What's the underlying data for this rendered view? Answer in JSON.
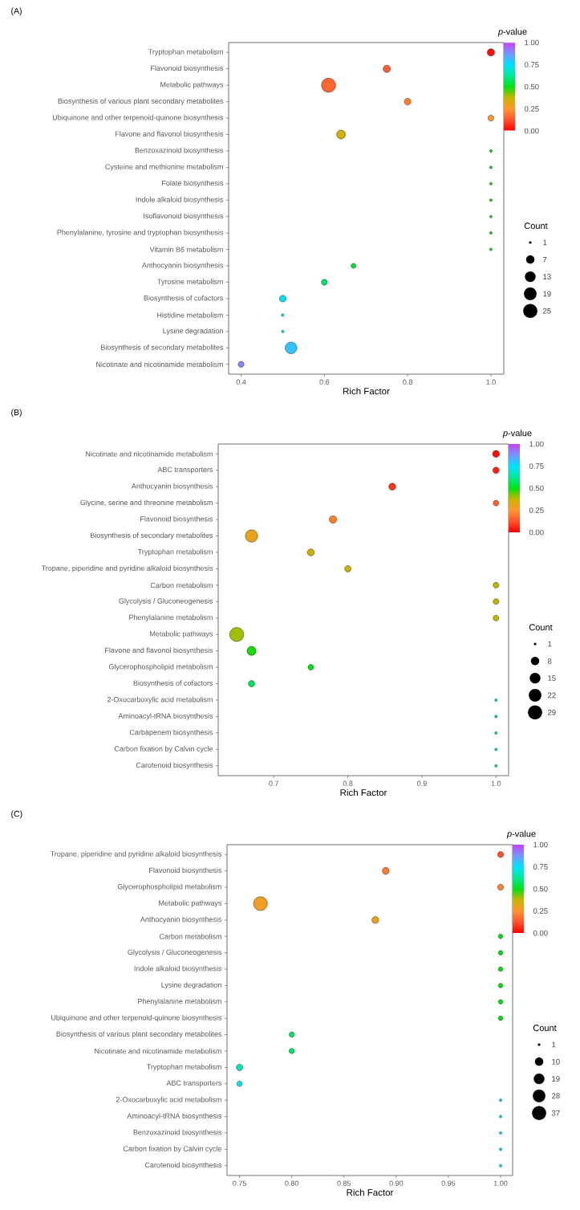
{
  "chart_data": [
    {
      "type": "bubble",
      "title": "(A)",
      "orientation": "horizontal",
      "categories": [
        "Tryptophan metabolism",
        "Flavonoid biosynthesis",
        "Metabolic pathways",
        "Biosynthesis of various plant secondary metabolites",
        "Ubiquinone and other terpenoid-quinone biosynthesis",
        "Flavone and flavonol biosynthesis",
        "Benzoxazinoid biosynthesis",
        "Cysteine and methionine metabolism",
        "Folate biosynthesis",
        "Indole alkaloid biosynthesis",
        "Isoflavonoid biosynthesis",
        "Phenylalanine, tyrosine and tryptophan biosynthesis",
        "Vitamin B6 metabolism",
        "Anthocyanin biosynthesis",
        "Tyrosine metabolism",
        "Biosynthesis of cofactors",
        "Histidine metabolism",
        "Lysine degradation",
        "Biosynthesis of secondary metabolites",
        "Nicotinate and nicotinamide metabolism"
      ],
      "values": [
        1.0,
        0.75,
        0.61,
        0.8,
        1.0,
        0.64,
        1.0,
        1.0,
        1.0,
        1.0,
        1.0,
        1.0,
        1.0,
        0.67,
        0.6,
        0.5,
        0.5,
        0.5,
        0.52,
        0.4
      ],
      "sizes": [
        5,
        5,
        25,
        4,
        3,
        8,
        1,
        1,
        1,
        1,
        1,
        1,
        1,
        2,
        3,
        4,
        1,
        1,
        16,
        3
      ],
      "cvalues": [
        0.02,
        0.15,
        0.16,
        0.2,
        0.25,
        0.36,
        0.5,
        0.5,
        0.5,
        0.5,
        0.5,
        0.5,
        0.5,
        0.53,
        0.58,
        0.72,
        0.74,
        0.74,
        0.8,
        0.9
      ],
      "xlabel": "Rich Factor",
      "xlim": [
        0.37,
        1.031
      ],
      "xticks": [
        0.4,
        0.6,
        0.8,
        {
          "value": 1,
          "label": "1.0"
        }
      ],
      "clabel": "*p*-value",
      "clim": [
        0,
        1
      ],
      "cticks": [
        {
          "value": 0,
          "label": "0.00"
        },
        {
          "value": 0.25,
          "label": "0.25"
        },
        {
          "value": 0.5,
          "label": "0.50"
        },
        {
          "value": 0.75,
          "label": "0.75"
        },
        {
          "value": 1,
          "label": "1.00"
        }
      ],
      "legend_title": "Count",
      "size_legend": [
        1,
        7,
        13,
        19,
        25
      ]
    },
    {
      "type": "bubble",
      "title": "(B)",
      "orientation": "horizontal",
      "categories": [
        "Nicotinate and nicotinamide metabolism",
        "ABC transporters",
        "Anthocyanin biosynthesis",
        "Glycine, serine and threonine metabolism",
        "Flavonoid biosynthesis",
        "Biosynthesis of secondary metabolites",
        "Tryptophan metabolism",
        "Tropane, piperidine and pyridine alkaloid biosynthesis",
        "Carbon metabolism",
        "Glycolysis / Gluconeogenesis",
        "Phenylalanine metabolism",
        "Metabolic pathways",
        "Flavone and flavonol biosynthesis",
        "Glycerophospholipid metabolism",
        "Biosynthesis of cofactors",
        "2-Oxocarboxylic acid metabolism",
        "Aminoacyl-tRNA biosynthesis",
        "Carbapenem biosynthesis",
        "Carbon fixation by Calvin cycle",
        "Carotenoid biosynthesis"
      ],
      "values": [
        1.0,
        1.0,
        0.86,
        1.0,
        0.78,
        0.67,
        0.75,
        0.8,
        1.0,
        1.0,
        1.0,
        0.65,
        0.67,
        0.75,
        0.67,
        1.0,
        1.0,
        1.0,
        1.0,
        1.0
      ],
      "sizes": [
        5,
        4,
        5,
        3,
        6,
        21,
        5,
        4,
        3,
        3,
        3,
        29,
        10,
        3,
        4,
        1,
        1,
        1,
        1,
        1
      ],
      "cvalues": [
        0.02,
        0.05,
        0.08,
        0.15,
        0.2,
        0.3,
        0.36,
        0.37,
        0.38,
        0.38,
        0.38,
        0.4,
        0.48,
        0.5,
        0.57,
        0.6,
        0.6,
        0.6,
        0.6,
        0.6
      ],
      "xlabel": "Rich Factor",
      "xlim": [
        0.625,
        1.017
      ],
      "xticks": [
        0.7,
        0.8,
        0.9,
        {
          "value": 1,
          "label": "1.0"
        }
      ],
      "clabel": "*p*-value",
      "clim": [
        0,
        1
      ],
      "cticks": [
        {
          "value": 0,
          "label": "0.00"
        },
        {
          "value": 0.25,
          "label": "0.25"
        },
        {
          "value": 0.5,
          "label": "0.50"
        },
        {
          "value": 0.75,
          "label": "0.75"
        },
        {
          "value": 1,
          "label": "1.00"
        }
      ],
      "legend_title": "Count",
      "size_legend": [
        1,
        8,
        15,
        22,
        29
      ]
    },
    {
      "type": "bubble",
      "title": "(C)",
      "orientation": "horizontal",
      "categories": [
        "Tropane, piperidine and pyridine alkaloid biosynthesis",
        "Flavonoid biosynthesis",
        "Glycerophospholipid metabolism",
        "Metabolic pathways",
        "Anthocyanin biosynthesis",
        "Carbon metabolism",
        "Glycolysis / Gluconeogenesis",
        "Indole alkaloid biosynthesis",
        "Lysine degradation",
        "Phenylalanine metabolism",
        "Ubiquinone and other terpenoid-quinone biosynthesis",
        "Biosynthesis of various plant secondary metabolites",
        "Nicotinate and nicotinamide metabolism",
        "Tryptophan metabolism",
        "ABC transporters",
        "2-Oxocarboxylic acid metabolism",
        "Aminoacyl-tRNA biosynthesis",
        "Benzoxazinoid biosynthesis",
        "Carbon fixation by Calvin cycle",
        "Carotenoid biosynthesis"
      ],
      "values": [
        1.0,
        0.89,
        1.0,
        0.77,
        0.88,
        1.0,
        1.0,
        1.0,
        1.0,
        1.0,
        1.0,
        0.8,
        0.8,
        0.75,
        0.75,
        1.0,
        1.0,
        1.0,
        1.0,
        1.0
      ],
      "sizes": [
        4,
        6,
        4,
        35,
        6,
        2,
        2,
        2,
        2,
        2,
        2,
        3,
        3,
        5,
        3,
        1,
        1,
        1,
        1,
        1
      ],
      "cvalues": [
        0.12,
        0.2,
        0.22,
        0.28,
        0.3,
        0.5,
        0.5,
        0.5,
        0.5,
        0.5,
        0.5,
        0.58,
        0.58,
        0.66,
        0.72,
        0.75,
        0.75,
        0.75,
        0.75,
        0.75
      ],
      "xlabel": "Rich Factor",
      "xlim": [
        0.738,
        1.0115
      ],
      "xticks": [
        0.75,
        {
          "value": 0.8,
          "label": "0.80"
        },
        0.85,
        {
          "value": 0.9,
          "label": "0.90"
        },
        0.95,
        {
          "value": 1,
          "label": "1.00"
        }
      ],
      "clabel": "*p*-value",
      "clim": [
        0,
        1
      ],
      "cticks": [
        {
          "value": 0,
          "label": "0.00"
        },
        {
          "value": 0.25,
          "label": "0.25"
        },
        {
          "value": 0.5,
          "label": "0.50"
        },
        {
          "value": 0.75,
          "label": "0.75"
        },
        {
          "value": 1,
          "label": "1.00"
        }
      ],
      "legend_title": "Count",
      "size_legend": [
        1,
        10,
        19,
        28,
        37
      ]
    }
  ]
}
